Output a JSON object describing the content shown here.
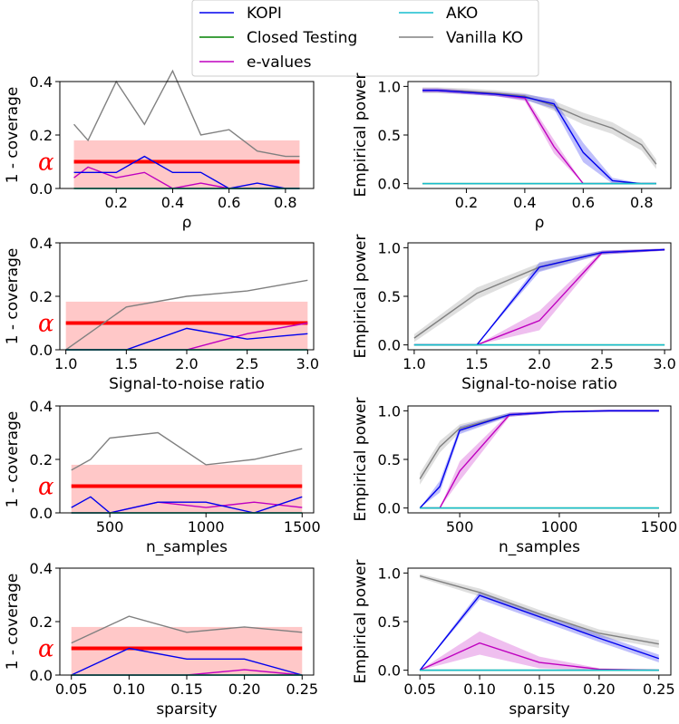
{
  "legend": {
    "entries": [
      {
        "name": "KOPI",
        "color": "#0000ee"
      },
      {
        "name": "Closed Testing",
        "color": "#008000"
      },
      {
        "name": "e-values",
        "color": "#bf00bf"
      },
      {
        "name": "AKO",
        "color": "#17becf"
      },
      {
        "name": "Vanilla KO",
        "color": "#808080"
      }
    ]
  },
  "alpha_label": "α",
  "colors": {
    "KOPI": "#0000ee",
    "Closed Testing": "#008000",
    "e-values": "#bf00bf",
    "AKO": "#17becf",
    "Vanilla KO": "#808080",
    "alpha_line": "#ff0000",
    "alpha_band": "#ffc8c8"
  },
  "chart_data": [
    {
      "type": "line",
      "ylabel": "1 - coverage",
      "xlabel": "ρ",
      "xlim": [
        0.0,
        0.9
      ],
      "ylim": [
        0,
        0.4
      ],
      "xticks": [
        0.2,
        0.4,
        0.6,
        0.8
      ],
      "xtick_labels": [
        "0.2",
        "0.4",
        "0.6",
        "0.8"
      ],
      "yticks": [
        0.0,
        0.2,
        0.4
      ],
      "ytick_labels": [
        "0.0",
        "0.2",
        "0.4"
      ],
      "alpha": 0.1,
      "alpha_band": [
        0.0,
        0.18
      ],
      "x": [
        0.05,
        0.1,
        0.2,
        0.3,
        0.4,
        0.5,
        0.6,
        0.7,
        0.8,
        0.85
      ],
      "series": [
        {
          "name": "Vanilla KO",
          "values": [
            0.24,
            0.18,
            0.4,
            0.24,
            0.44,
            0.2,
            0.22,
            0.14,
            0.12,
            0.12
          ]
        },
        {
          "name": "KOPI",
          "values": [
            0.06,
            0.06,
            0.06,
            0.12,
            0.06,
            0.06,
            0.0,
            0.02,
            0.0,
            0.0
          ]
        },
        {
          "name": "e-values",
          "values": [
            0.04,
            0.08,
            0.04,
            0.06,
            0.0,
            0.02,
            0.0,
            0.0,
            0.0,
            0.0
          ]
        },
        {
          "name": "Closed Testing",
          "values": [
            0.0,
            0.0,
            0.0,
            0.0,
            0.0,
            0.0,
            0.0,
            0.0,
            0.0,
            0.0
          ]
        },
        {
          "name": "AKO",
          "values": [
            0.0,
            0.0,
            0.0,
            0.0,
            0.0,
            0.0,
            0.0,
            0.0,
            0.0,
            0.0
          ]
        }
      ]
    },
    {
      "type": "line",
      "ylabel": "Empirical power",
      "xlabel": "ρ",
      "xlim": [
        0.0,
        0.9
      ],
      "ylim": [
        -0.05,
        1.05
      ],
      "xticks": [
        0.2,
        0.4,
        0.6,
        0.8
      ],
      "xtick_labels": [
        "0.2",
        "0.4",
        "0.6",
        "0.8"
      ],
      "yticks": [
        0.0,
        0.5,
        1.0
      ],
      "ytick_labels": [
        "0.0",
        "0.5",
        "1.0"
      ],
      "x": [
        0.05,
        0.1,
        0.2,
        0.3,
        0.4,
        0.5,
        0.6,
        0.7,
        0.8,
        0.85
      ],
      "series": [
        {
          "name": "Vanilla KO",
          "values": [
            0.96,
            0.96,
            0.95,
            0.93,
            0.9,
            0.8,
            0.67,
            0.57,
            0.4,
            0.2
          ],
          "band": [
            0.03,
            0.03,
            0.03,
            0.03,
            0.03,
            0.05,
            0.06,
            0.06,
            0.06,
            0.05
          ]
        },
        {
          "name": "KOPI",
          "values": [
            0.96,
            0.96,
            0.94,
            0.92,
            0.89,
            0.82,
            0.32,
            0.03,
            0.0,
            0.0
          ],
          "band": [
            0.02,
            0.02,
            0.02,
            0.02,
            0.03,
            0.05,
            0.1,
            0.03,
            0.0,
            0.0
          ]
        },
        {
          "name": "e-values",
          "values": [
            0.96,
            0.96,
            0.94,
            0.92,
            0.88,
            0.38,
            0.0,
            0.0,
            0.0,
            0.0
          ],
          "band": [
            0.02,
            0.02,
            0.02,
            0.02,
            0.03,
            0.07,
            0.0,
            0.0,
            0.0,
            0.0
          ]
        },
        {
          "name": "Closed Testing",
          "values": [
            0.0,
            0.0,
            0.0,
            0.0,
            0.0,
            0.0,
            0.0,
            0.0,
            0.0,
            0.0
          ]
        },
        {
          "name": "AKO",
          "values": [
            0.0,
            0.0,
            0.0,
            0.0,
            0.0,
            0.0,
            0.0,
            0.0,
            0.0,
            0.0
          ]
        }
      ]
    },
    {
      "type": "line",
      "ylabel": "1 - coverage",
      "xlabel": "Signal-to-noise ratio",
      "xlim": [
        0.95,
        3.05
      ],
      "ylim": [
        0,
        0.4
      ],
      "xticks": [
        1.0,
        1.5,
        2.0,
        2.5,
        3.0
      ],
      "xtick_labels": [
        "1.0",
        "1.5",
        "2.0",
        "2.5",
        "3.0"
      ],
      "yticks": [
        0.0,
        0.2,
        0.4
      ],
      "ytick_labels": [
        "0.0",
        "0.2",
        "0.4"
      ],
      "alpha": 0.1,
      "alpha_band": [
        0.0,
        0.18
      ],
      "x": [
        1.0,
        1.5,
        2.0,
        2.5,
        3.0
      ],
      "series": [
        {
          "name": "Vanilla KO",
          "values": [
            0.0,
            0.16,
            0.2,
            0.22,
            0.26
          ]
        },
        {
          "name": "KOPI",
          "values": [
            0.0,
            0.0,
            0.08,
            0.04,
            0.06
          ]
        },
        {
          "name": "e-values",
          "values": [
            0.0,
            0.0,
            0.0,
            0.06,
            0.1
          ]
        },
        {
          "name": "Closed Testing",
          "values": [
            0.0,
            0.0,
            0.0,
            0.0,
            0.0
          ]
        },
        {
          "name": "AKO",
          "values": [
            0.0,
            0.0,
            0.0,
            0.0,
            0.0
          ]
        }
      ]
    },
    {
      "type": "line",
      "ylabel": "Empirical power",
      "xlabel": "Signal-to-noise ratio",
      "xlim": [
        0.95,
        3.05
      ],
      "ylim": [
        -0.05,
        1.05
      ],
      "xticks": [
        1.0,
        1.5,
        2.0,
        2.5,
        3.0
      ],
      "xtick_labels": [
        "1.0",
        "1.5",
        "2.0",
        "2.5",
        "3.0"
      ],
      "yticks": [
        0.0,
        0.5,
        1.0
      ],
      "ytick_labels": [
        "0.0",
        "0.5",
        "1.0"
      ],
      "x": [
        1.0,
        1.5,
        2.0,
        2.5,
        3.0
      ],
      "series": [
        {
          "name": "Vanilla KO",
          "values": [
            0.07,
            0.53,
            0.8,
            0.95,
            0.98
          ],
          "band": [
            0.04,
            0.06,
            0.04,
            0.02,
            0.01
          ]
        },
        {
          "name": "KOPI",
          "values": [
            0.0,
            0.0,
            0.8,
            0.95,
            0.98
          ],
          "band": [
            0.0,
            0.0,
            0.05,
            0.02,
            0.01
          ]
        },
        {
          "name": "e-values",
          "values": [
            0.0,
            0.0,
            0.25,
            0.95,
            0.98
          ],
          "band": [
            0.0,
            0.0,
            0.1,
            0.02,
            0.01
          ]
        },
        {
          "name": "Closed Testing",
          "values": [
            0.0,
            0.0,
            0.0,
            0.0,
            0.0
          ]
        },
        {
          "name": "AKO",
          "values": [
            0.0,
            0.0,
            0.0,
            0.0,
            0.0
          ]
        }
      ]
    },
    {
      "type": "line",
      "ylabel": "1 - coverage",
      "xlabel": "n_samples",
      "xlim": [
        240,
        1560
      ],
      "ylim": [
        0,
        0.4
      ],
      "xticks": [
        500,
        1000,
        1500
      ],
      "xtick_labels": [
        "500",
        "1000",
        "1500"
      ],
      "yticks": [
        0.0,
        0.2,
        0.4
      ],
      "ytick_labels": [
        "0.0",
        "0.2",
        "0.4"
      ],
      "alpha": 0.1,
      "alpha_band": [
        0.0,
        0.18
      ],
      "x": [
        300,
        400,
        500,
        750,
        1000,
        1250,
        1500
      ],
      "series": [
        {
          "name": "Vanilla KO",
          "values": [
            0.16,
            0.2,
            0.28,
            0.3,
            0.18,
            0.2,
            0.24
          ]
        },
        {
          "name": "KOPI",
          "values": [
            0.02,
            0.06,
            0.0,
            0.04,
            0.04,
            0.0,
            0.06
          ]
        },
        {
          "name": "e-values",
          "values": [
            0.0,
            0.0,
            0.0,
            0.04,
            0.02,
            0.04,
            0.02
          ]
        },
        {
          "name": "Closed Testing",
          "values": [
            0.0,
            0.0,
            0.0,
            0.0,
            0.0,
            0.0,
            0.0
          ]
        },
        {
          "name": "AKO",
          "values": [
            0.0,
            0.0,
            0.0,
            0.0,
            0.0,
            0.0,
            0.0
          ]
        }
      ]
    },
    {
      "type": "line",
      "ylabel": "Empirical power",
      "xlabel": "n_samples",
      "xlim": [
        240,
        1560
      ],
      "ylim": [
        -0.05,
        1.05
      ],
      "xticks": [
        500,
        1000,
        1500
      ],
      "xtick_labels": [
        "500",
        "1000",
        "1500"
      ],
      "yticks": [
        0.0,
        0.5,
        1.0
      ],
      "ytick_labels": [
        "0.0",
        "0.5",
        "1.0"
      ],
      "x": [
        300,
        400,
        500,
        750,
        1000,
        1250,
        1500
      ],
      "series": [
        {
          "name": "Vanilla KO",
          "values": [
            0.3,
            0.63,
            0.82,
            0.96,
            0.99,
            1.0,
            1.0
          ],
          "band": [
            0.06,
            0.06,
            0.04,
            0.02,
            0.01,
            0.01,
            0.01
          ]
        },
        {
          "name": "KOPI",
          "values": [
            0.0,
            0.22,
            0.8,
            0.96,
            0.99,
            1.0,
            1.0
          ],
          "band": [
            0.0,
            0.06,
            0.04,
            0.02,
            0.01,
            0.01,
            0.01
          ]
        },
        {
          "name": "e-values",
          "values": [
            0.0,
            0.0,
            0.38,
            0.96,
            0.99,
            1.0,
            1.0
          ],
          "band": [
            0.0,
            0.0,
            0.1,
            0.02,
            0.01,
            0.01,
            0.01
          ]
        },
        {
          "name": "Closed Testing",
          "values": [
            0.0,
            0.0,
            0.0,
            0.0,
            0.0,
            0.0,
            0.0
          ]
        },
        {
          "name": "AKO",
          "values": [
            0.0,
            0.0,
            0.0,
            0.0,
            0.0,
            0.0,
            0.0
          ]
        }
      ]
    },
    {
      "type": "line",
      "ylabel": "1 - coverage",
      "xlabel": "sparsity",
      "xlim": [
        0.04,
        0.26
      ],
      "ylim": [
        0,
        0.4
      ],
      "xticks": [
        0.05,
        0.1,
        0.15,
        0.2,
        0.25
      ],
      "xtick_labels": [
        "0.05",
        "0.10",
        "0.15",
        "0.20",
        "0.25"
      ],
      "yticks": [
        0.0,
        0.2,
        0.4
      ],
      "ytick_labels": [
        "0.0",
        "0.2",
        "0.4"
      ],
      "alpha": 0.1,
      "alpha_band": [
        0.0,
        0.18
      ],
      "x": [
        0.05,
        0.1,
        0.15,
        0.2,
        0.25
      ],
      "series": [
        {
          "name": "Vanilla KO",
          "values": [
            0.12,
            0.22,
            0.16,
            0.18,
            0.16
          ]
        },
        {
          "name": "KOPI",
          "values": [
            0.0,
            0.1,
            0.06,
            0.06,
            0.0
          ]
        },
        {
          "name": "e-values",
          "values": [
            0.0,
            0.0,
            0.0,
            0.02,
            0.0
          ]
        },
        {
          "name": "Closed Testing",
          "values": [
            0.0,
            0.0,
            0.0,
            0.0,
            0.0
          ]
        },
        {
          "name": "AKO",
          "values": [
            0.0,
            0.0,
            0.0,
            0.0,
            0.0
          ]
        }
      ]
    },
    {
      "type": "line",
      "ylabel": "Empirical power",
      "xlabel": "sparsity",
      "xlim": [
        0.04,
        0.26
      ],
      "ylim": [
        -0.05,
        1.05
      ],
      "xticks": [
        0.05,
        0.1,
        0.15,
        0.2,
        0.25
      ],
      "xtick_labels": [
        "0.05",
        "0.10",
        "0.15",
        "0.20",
        "0.25"
      ],
      "yticks": [
        0.0,
        0.5,
        1.0
      ],
      "ytick_labels": [
        "0.0",
        "0.5",
        "1.0"
      ],
      "x": [
        0.05,
        0.1,
        0.15,
        0.2,
        0.25
      ],
      "series": [
        {
          "name": "Vanilla KO",
          "values": [
            0.97,
            0.8,
            0.58,
            0.38,
            0.27
          ],
          "band": [
            0.02,
            0.04,
            0.04,
            0.04,
            0.04
          ]
        },
        {
          "name": "KOPI",
          "values": [
            0.0,
            0.77,
            0.55,
            0.33,
            0.12
          ],
          "band": [
            0.0,
            0.04,
            0.04,
            0.04,
            0.04
          ]
        },
        {
          "name": "e-values",
          "values": [
            0.0,
            0.28,
            0.08,
            0.01,
            0.0
          ],
          "band": [
            0.0,
            0.12,
            0.06,
            0.01,
            0.0
          ]
        },
        {
          "name": "Closed Testing",
          "values": [
            0.0,
            0.0,
            0.0,
            0.0,
            0.0
          ]
        },
        {
          "name": "AKO",
          "values": [
            0.0,
            0.0,
            0.0,
            0.0,
            0.0
          ]
        }
      ]
    }
  ]
}
